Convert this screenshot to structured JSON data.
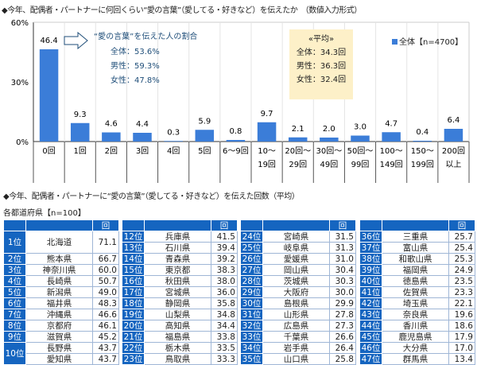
{
  "title": "◆今年、配偶者・パートナーに何回くらい“愛の言葉”（愛してる・好きなど）を伝えたか　（数値入力形式）",
  "chart_data": {
    "type": "bar",
    "title": "◆今年、配偶者・パートナーに何回くらい“愛の言葉”（愛してる・好きなど）を伝えたか　（数値入力形式）",
    "categories": [
      [
        "0回"
      ],
      [
        "1回"
      ],
      [
        "2回"
      ],
      [
        "3回"
      ],
      [
        "4回"
      ],
      [
        "5回"
      ],
      [
        "6～9回"
      ],
      [
        "10～",
        "19回"
      ],
      [
        "20回～",
        "29回"
      ],
      [
        "30回～",
        "49回"
      ],
      [
        "50回～",
        "99回"
      ],
      [
        "100～",
        "149回"
      ],
      [
        "150～",
        "199回"
      ],
      [
        "200回",
        "以上"
      ]
    ],
    "series": [
      {
        "name": "全体【n=4700】",
        "values": [
          46.4,
          9.3,
          4.6,
          4.4,
          0.3,
          5.9,
          0.8,
          9.7,
          2.1,
          2.0,
          3.0,
          4.7,
          0.4,
          6.4
        ],
        "color": "#3b7dd8"
      }
    ],
    "yticks": [
      "0%",
      "30%",
      "60%"
    ],
    "ylim": [
      0,
      60
    ],
    "grid": "vertical separators",
    "legend": "top-right"
  },
  "note": {
    "title": "“愛の言葉”を伝えた人の割合",
    "lines": [
      "全体：53.6%",
      "男性：59.3%",
      "女性：47.8%"
    ]
  },
  "avg": {
    "title": "«平均»",
    "lines": [
      "全体：34.3回",
      "男性：36.3回",
      "女性：32.4回"
    ]
  },
  "title2": "◆今年、配偶者・パートナーに“愛の言葉”（愛してる・好きなど）を伝えた回数（平均）",
  "title3": "各都道府県【n=100】",
  "unit": "回",
  "tables": [
    [
      [
        "1位",
        "北海道",
        "71.1",
        2
      ],
      [
        "2位",
        "熊本県",
        "66.7"
      ],
      [
        "3位",
        "神奈川県",
        "60.0"
      ],
      [
        "4位",
        "長崎県",
        "50.7"
      ],
      [
        "5位",
        "新潟県",
        "49.0"
      ],
      [
        "6位",
        "福井県",
        "48.3"
      ],
      [
        "7位",
        "沖縄県",
        "46.6"
      ],
      [
        "8位",
        "京都府",
        "46.1"
      ],
      [
        "9位",
        "滋賀県",
        "45.2"
      ],
      [
        "10位",
        "長野県",
        "43.7",
        2
      ],
      [
        "",
        "愛知県",
        "43.7"
      ]
    ],
    [
      [
        "12位",
        "兵庫県",
        "41.5"
      ],
      [
        "13位",
        "石川県",
        "39.4"
      ],
      [
        "14位",
        "青森県",
        "39.2"
      ],
      [
        "15位",
        "東京都",
        "38.3"
      ],
      [
        "16位",
        "秋田県",
        "38.0"
      ],
      [
        "17位",
        "宮城県",
        "36.0"
      ],
      [
        "18位",
        "静岡県",
        "35.8"
      ],
      [
        "19位",
        "山梨県",
        "34.8"
      ],
      [
        "20位",
        "高知県",
        "34.4"
      ],
      [
        "21位",
        "福島県",
        "33.8"
      ],
      [
        "22位",
        "栃木県",
        "33.5"
      ],
      [
        "23位",
        "鳥取県",
        "33.3"
      ]
    ],
    [
      [
        "24位",
        "宮崎県",
        "31.5"
      ],
      [
        "25位",
        "岐阜県",
        "31.3"
      ],
      [
        "26位",
        "愛媛県",
        "31.0"
      ],
      [
        "27位",
        "岡山県",
        "30.4"
      ],
      [
        "28位",
        "茨城県",
        "30.3"
      ],
      [
        "29位",
        "大阪府",
        "30.0"
      ],
      [
        "30位",
        "島根県",
        "29.9"
      ],
      [
        "31位",
        "山形県",
        "27.8"
      ],
      [
        "32位",
        "広島県",
        "27.3"
      ],
      [
        "33位",
        "千葉県",
        "26.6"
      ],
      [
        "34位",
        "岩手県",
        "26.4"
      ],
      [
        "35位",
        "山口県",
        "25.8"
      ]
    ],
    [
      [
        "36位",
        "三重県",
        "25.7"
      ],
      [
        "37位",
        "富山県",
        "25.4"
      ],
      [
        "38位",
        "和歌山県",
        "25.3"
      ],
      [
        "39位",
        "福岡県",
        "24.9"
      ],
      [
        "40位",
        "徳島県",
        "23.5"
      ],
      [
        "41位",
        "佐賀県",
        "23.3"
      ],
      [
        "42位",
        "埼玉県",
        "22.1"
      ],
      [
        "43位",
        "奈良県",
        "19.6"
      ],
      [
        "44位",
        "香川県",
        "18.6"
      ],
      [
        "45位",
        "鹿児島県",
        "17.9"
      ],
      [
        "46位",
        "大分県",
        "17.0"
      ],
      [
        "47位",
        "群馬県",
        "13.4"
      ]
    ]
  ]
}
